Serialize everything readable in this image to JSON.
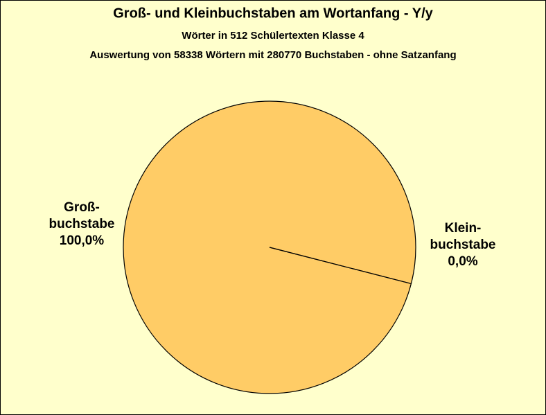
{
  "chart_data": {
    "type": "pie",
    "title": "Groß- und  Kleinbuchstaben am Wortanfang - Y/y",
    "subtitles": [
      "Wörter in 512 Schülertexten Klasse 4",
      "Auswertung von 58338 Wörtern mit 280770 Buchstaben - ohne Satzanfang"
    ],
    "categories": [
      "Groß-\nbuchstabe",
      "Klein-\nbuchstabe"
    ],
    "values": [
      100.0,
      0.0
    ],
    "value_labels": [
      "100,0%",
      "0,0%"
    ],
    "colors": [
      "#ffcc66",
      "#ffcc66"
    ]
  }
}
